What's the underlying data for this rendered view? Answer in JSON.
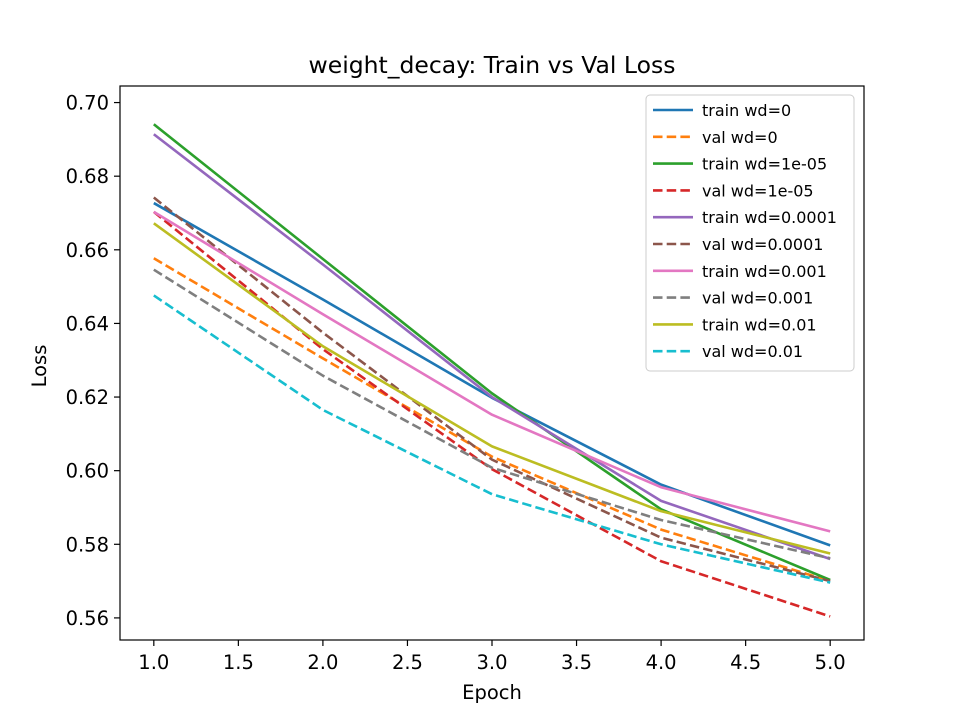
{
  "chart_data": {
    "type": "line",
    "title": "weight_decay: Train vs Val Loss",
    "xlabel": "Epoch",
    "ylabel": "Loss",
    "xlim": [
      0.8,
      5.2
    ],
    "ylim": [
      0.554,
      0.7045
    ],
    "xticks": [
      "1.0",
      "1.5",
      "2.0",
      "2.5",
      "3.0",
      "3.5",
      "4.0",
      "4.5",
      "5.0"
    ],
    "yticks": [
      "0.56",
      "0.58",
      "0.60",
      "0.62",
      "0.64",
      "0.66",
      "0.68",
      "0.70"
    ],
    "grid": false,
    "legend_position": "top-right",
    "x": [
      1,
      2,
      3,
      4,
      5
    ],
    "series": [
      {
        "name": "train wd=0",
        "style": "solid",
        "color": "#1f77b4",
        "values": [
          0.6727,
          0.6465,
          0.6198,
          0.5962,
          0.5797
        ]
      },
      {
        "name": "val wd=0",
        "style": "dashed",
        "color": "#ff7f0e",
        "values": [
          0.6577,
          0.6305,
          0.6038,
          0.584,
          0.57
        ]
      },
      {
        "name": "train wd=1e-05",
        "style": "solid",
        "color": "#2ca02c",
        "values": [
          0.6941,
          0.6575,
          0.621,
          0.5895,
          0.5703
        ]
      },
      {
        "name": "val wd=1e-05",
        "style": "dashed",
        "color": "#d62728",
        "values": [
          0.6703,
          0.633,
          0.6004,
          0.5754,
          0.5604
        ]
      },
      {
        "name": "train wd=0.0001",
        "style": "solid",
        "color": "#9467bd",
        "values": [
          0.6914,
          0.656,
          0.62,
          0.5918,
          0.576
        ]
      },
      {
        "name": "val wd=0.0001",
        "style": "dashed",
        "color": "#8c564b",
        "values": [
          0.6742,
          0.6375,
          0.603,
          0.5818,
          0.57
        ]
      },
      {
        "name": "train wd=0.001",
        "style": "solid",
        "color": "#e377c2",
        "values": [
          0.6703,
          0.6425,
          0.6152,
          0.5955,
          0.5835
        ]
      },
      {
        "name": "val wd=0.001",
        "style": "dashed",
        "color": "#7f7f7f",
        "values": [
          0.6546,
          0.6258,
          0.6008,
          0.5866,
          0.5762
        ]
      },
      {
        "name": "train wd=0.01",
        "style": "solid",
        "color": "#bcbd22",
        "values": [
          0.6672,
          0.6338,
          0.6066,
          0.589,
          0.5775
        ]
      },
      {
        "name": "val wd=0.01",
        "style": "dashed",
        "color": "#17becf",
        "values": [
          0.6476,
          0.6165,
          0.5936,
          0.58,
          0.5696
        ]
      }
    ]
  }
}
